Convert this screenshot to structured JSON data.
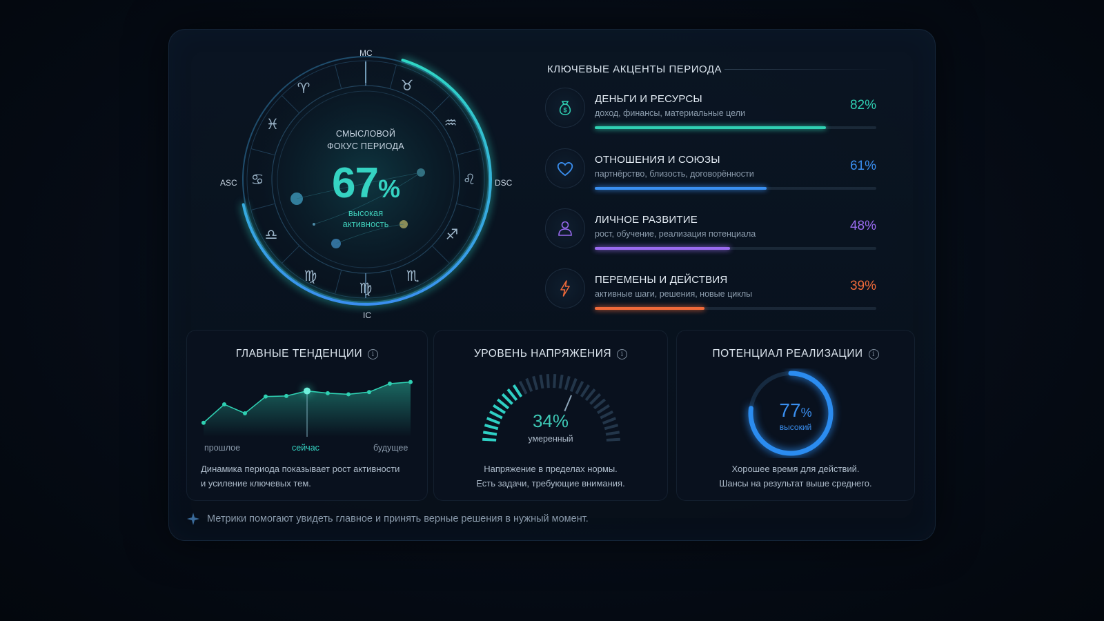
{
  "wheel": {
    "caption_line1": "СМЫСЛОВОЙ",
    "caption_line2": "ФОКУС ПЕРИОДА",
    "value": "67",
    "value_unit": "%",
    "sub_line1": "высокая",
    "sub_line2": "активность",
    "progress": 0.67,
    "axes": {
      "top": "MC",
      "bottom": "IC",
      "left": "ASC",
      "right": "DSC"
    },
    "signs": [
      "♈",
      "♉",
      "♒",
      "♌",
      "♐",
      "♏",
      "♍",
      "♍",
      "♎",
      "♋",
      "♓"
    ],
    "accent_color": "#35d3c2"
  },
  "accents": {
    "title": "КЛЮЧЕВЫЕ АКЦЕНТЫ ПЕРИОДА",
    "items": [
      {
        "name": "ДЕНЬГИ И РЕСУРСЫ",
        "desc": "доход, финансы, материальные цели",
        "value": "82%",
        "fraction": 0.82,
        "color": "#2fd0b2",
        "icon": "money-bag-icon"
      },
      {
        "name": "ОТНОШЕНИЯ И СОЮЗЫ",
        "desc": "партнёрство, близость, договорённости",
        "value": "61%",
        "fraction": 0.61,
        "color": "#3a8ff0",
        "icon": "heart-icon"
      },
      {
        "name": "ЛИЧНОЕ РАЗВИТИЕ",
        "desc": "рост, обучение, реализация потенциала",
        "value": "48%",
        "fraction": 0.48,
        "color": "#9a6bf0",
        "icon": "person-icon"
      },
      {
        "name": "ПЕРЕМЕНЫ И ДЕЙСТВИЯ",
        "desc": "активные шаги, решения, новые циклы",
        "value": "39%",
        "fraction": 0.39,
        "color": "#f06a3a",
        "icon": "lightning-icon"
      }
    ]
  },
  "trends": {
    "title": "ГЛАВНЫЕ ТЕНДЕНЦИИ",
    "label_past": "прошлое",
    "label_now": "сейчас",
    "label_future": "будущее",
    "desc_line1": "Динамика периода показывает рост активности",
    "desc_line2": "и усиление ключевых тем.",
    "points": [
      0.25,
      0.58,
      0.42,
      0.72,
      0.73,
      0.82,
      0.78,
      0.76,
      0.8,
      0.95,
      0.98
    ],
    "now_index": 5
  },
  "tension": {
    "title": "УРОВЕНЬ НАПРЯЖЕНИЯ",
    "value": "34%",
    "fraction": 0.34,
    "label": "умеренный",
    "desc_line1": "Напряжение в пределах нормы.",
    "desc_line2": "Есть задачи, требующие внимания."
  },
  "potential": {
    "title": "ПОТЕНЦИАЛ РЕАЛИЗАЦИИ",
    "value": "77",
    "value_unit": "%",
    "fraction": 0.77,
    "label": "высокий",
    "desc_line1": "Хорошее время для действий.",
    "desc_line2": "Шансы на результат выше среднего."
  },
  "footer": {
    "text": "Метрики помогают увидеть главное и принять верные решения в нужный момент.",
    "icon": "sparkle-icon"
  }
}
